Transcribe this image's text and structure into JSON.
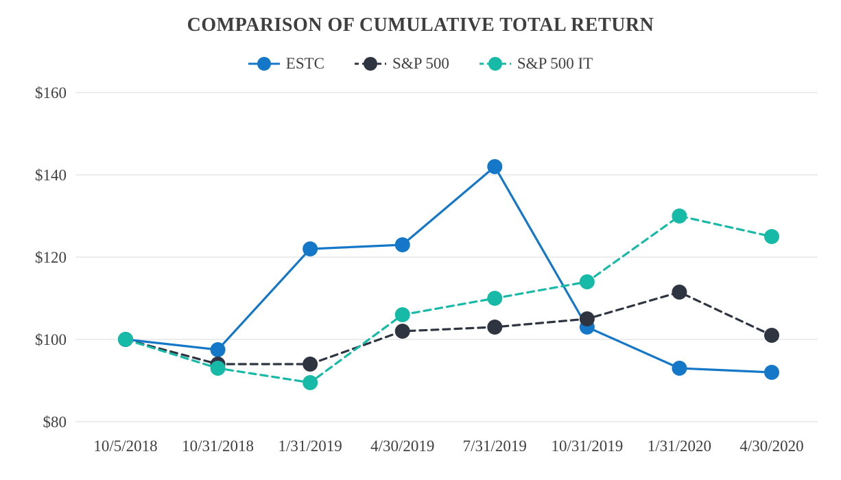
{
  "chart_data": {
    "type": "line",
    "title": "COMPARISON OF CUMULATIVE TOTAL RETURN",
    "categories": [
      "10/5/2018",
      "10/31/2018",
      "1/31/2019",
      "4/30/2019",
      "7/31/2019",
      "10/31/2019",
      "1/31/2020",
      "4/30/2020"
    ],
    "series": [
      {
        "name": "ESTC",
        "color": "#1477C8",
        "dash": "solid",
        "values": [
          100,
          97.5,
          122,
          123,
          142,
          103,
          93,
          92
        ]
      },
      {
        "name": "S&P 500",
        "color": "#2E3440",
        "dash": "dashed",
        "values": [
          100,
          94,
          94,
          102,
          103,
          105,
          111.5,
          101
        ]
      },
      {
        "name": "S&P 500 IT",
        "color": "#17B9A7",
        "dash": "dashed",
        "values": [
          100,
          93,
          89.5,
          106,
          110,
          114,
          130,
          125
        ]
      }
    ],
    "ylim": [
      80,
      160
    ],
    "yticks": [
      80,
      100,
      120,
      140,
      160
    ],
    "ytick_prefix": "$",
    "grid": "horizontal",
    "legend_position": "top",
    "grid_color": "#d9d9d9",
    "text_color": "#3f3f3f"
  }
}
